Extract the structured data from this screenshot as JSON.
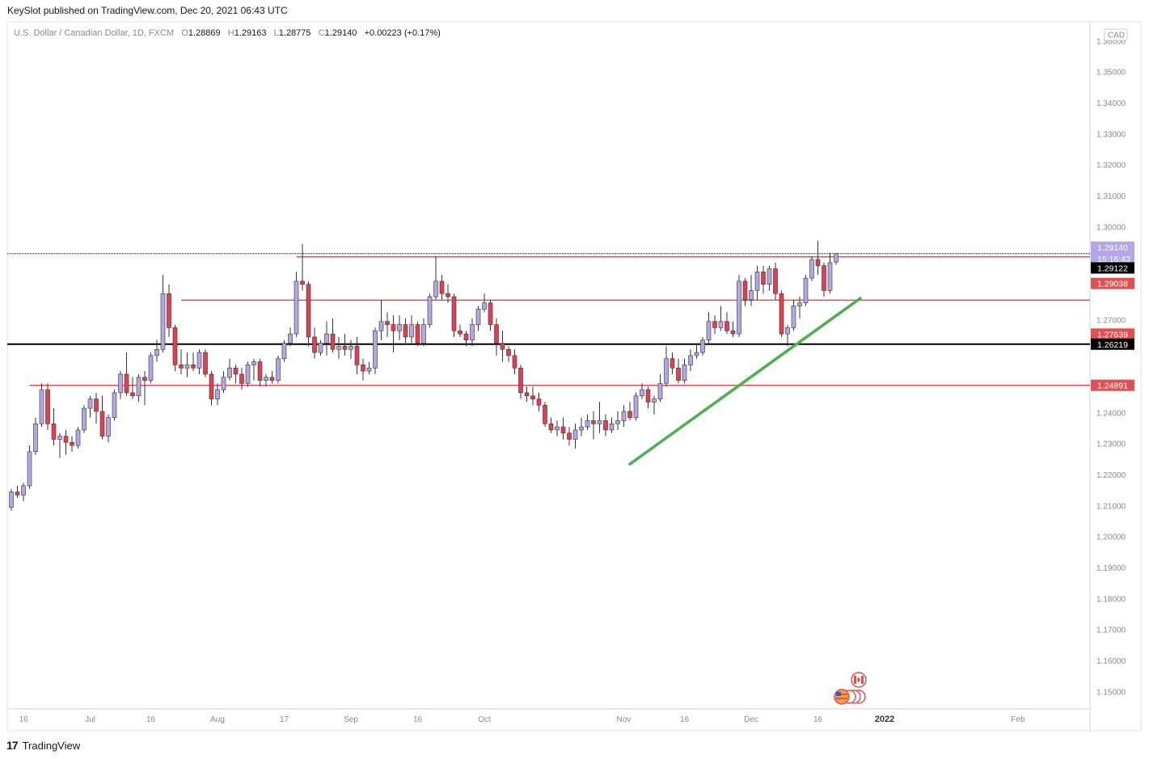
{
  "header": {
    "publisher_text": "KeySlot published on TradingView.com, Dec 20, 2021 06:43 UTC"
  },
  "legend": {
    "symbol": "U.S. Dollar / Canadian Dollar, 1D, FXCM",
    "o_label": "O",
    "o_value": "1.28869",
    "h_label": "H",
    "h_value": "1.29163",
    "l_label": "L",
    "l_value": "1.28775",
    "c_label": "C",
    "c_value": "1.29140",
    "change": "+0.00223 (+0.17%)"
  },
  "footer": {
    "logo": "17",
    "brand": "TradingView"
  },
  "currency_badge": "CAD",
  "colors": {
    "up_candle": "#b4a7e5",
    "down_candle": "#e04050",
    "wick": "#333333",
    "support_red": "#e05050",
    "trend_green": "#4caf50",
    "black_line": "#000000",
    "price_tag": "#b4a7e5"
  },
  "chart_data": {
    "type": "candlestick",
    "title": "U.S. Dollar / Canadian Dollar, 1D, FXCM",
    "ylim": [
      1.1445,
      1.3662
    ],
    "y_ticks": [
      "1.36000",
      "1.35000",
      "1.34000",
      "1.33000",
      "1.32000",
      "1.31000",
      "1.30000",
      "1.27000",
      "1.24000",
      "1.23000",
      "1.22000",
      "1.21000",
      "1.20000",
      "1.19000",
      "1.18000",
      "1.17000",
      "1.16000",
      "1.15000"
    ],
    "x_ticks": [
      {
        "label": "16",
        "bar": 2
      },
      {
        "label": "Jul",
        "bar": 13
      },
      {
        "label": "16",
        "bar": 23
      },
      {
        "label": "Aug",
        "bar": 34
      },
      {
        "label": "17",
        "bar": 45
      },
      {
        "label": "Sep",
        "bar": 56
      },
      {
        "label": "16",
        "bar": 67
      },
      {
        "label": "Oct",
        "bar": 78
      },
      {
        "label": "Nov",
        "bar": 101
      },
      {
        "label": "16",
        "bar": 111
      },
      {
        "label": "Dec",
        "bar": 122
      },
      {
        "label": "16",
        "bar": 133
      },
      {
        "label": "2022",
        "bar": 144
      },
      {
        "label": "Feb",
        "bar": 166
      }
    ],
    "horizontal_levels": [
      {
        "value": 1.2914,
        "style": "black-dotted",
        "label": "1.29140",
        "sublabel": "15:16:43",
        "label_color": "#b4a7e5"
      },
      {
        "value": 1.29122,
        "style": "none",
        "label": "1.29122",
        "label_color": "#000000"
      },
      {
        "value": 1.29038,
        "style": "red",
        "label": "1.29038",
        "label_color": "#e05050",
        "from_bar": 47
      },
      {
        "value": 1.27639,
        "style": "red",
        "label": "1.27639",
        "label_color": "#e05050",
        "from_bar": 28
      },
      {
        "value": 1.26219,
        "style": "black",
        "label": "1.26219",
        "label_color": "#000000"
      },
      {
        "value": 1.24891,
        "style": "red",
        "label": "1.24891",
        "label_color": "#e05050",
        "from_bar": 3
      }
    ],
    "trendline": {
      "from": {
        "bar": 102,
        "value": 1.2235
      },
      "to": {
        "bar": 140,
        "value": 1.277
      }
    },
    "candles": [
      {
        "o": 1.2095,
        "h": 1.2155,
        "l": 1.2085,
        "c": 1.2145
      },
      {
        "o": 1.2145,
        "h": 1.2165,
        "l": 1.2125,
        "c": 1.2135
      },
      {
        "o": 1.2135,
        "h": 1.2175,
        "l": 1.2115,
        "c": 1.2165
      },
      {
        "o": 1.2165,
        "h": 1.2295,
        "l": 1.2155,
        "c": 1.2275
      },
      {
        "o": 1.2275,
        "h": 1.2385,
        "l": 1.2265,
        "c": 1.2365
      },
      {
        "o": 1.2365,
        "h": 1.2495,
        "l": 1.2355,
        "c": 1.2475
      },
      {
        "o": 1.2475,
        "h": 1.2495,
        "l": 1.2345,
        "c": 1.2365
      },
      {
        "o": 1.2365,
        "h": 1.2415,
        "l": 1.2295,
        "c": 1.2315
      },
      {
        "o": 1.2315,
        "h": 1.2335,
        "l": 1.2255,
        "c": 1.2325
      },
      {
        "o": 1.2325,
        "h": 1.2345,
        "l": 1.2265,
        "c": 1.2305
      },
      {
        "o": 1.2305,
        "h": 1.2325,
        "l": 1.2275,
        "c": 1.2295
      },
      {
        "o": 1.2295,
        "h": 1.2355,
        "l": 1.2285,
        "c": 1.2345
      },
      {
        "o": 1.2345,
        "h": 1.2425,
        "l": 1.2335,
        "c": 1.2415
      },
      {
        "o": 1.2415,
        "h": 1.2455,
        "l": 1.2385,
        "c": 1.2445
      },
      {
        "o": 1.2445,
        "h": 1.2465,
        "l": 1.2365,
        "c": 1.2405
      },
      {
        "o": 1.2405,
        "h": 1.2455,
        "l": 1.2315,
        "c": 1.2325
      },
      {
        "o": 1.2325,
        "h": 1.2395,
        "l": 1.2305,
        "c": 1.2385
      },
      {
        "o": 1.2385,
        "h": 1.2475,
        "l": 1.2375,
        "c": 1.2465
      },
      {
        "o": 1.2465,
        "h": 1.2535,
        "l": 1.2445,
        "c": 1.2525
      },
      {
        "o": 1.2525,
        "h": 1.2595,
        "l": 1.2455,
        "c": 1.2465
      },
      {
        "o": 1.2465,
        "h": 1.2515,
        "l": 1.2445,
        "c": 1.2455
      },
      {
        "o": 1.2455,
        "h": 1.2525,
        "l": 1.2435,
        "c": 1.2515
      },
      {
        "o": 1.2515,
        "h": 1.2535,
        "l": 1.2425,
        "c": 1.2505
      },
      {
        "o": 1.2505,
        "h": 1.2595,
        "l": 1.2495,
        "c": 1.2585
      },
      {
        "o": 1.2585,
        "h": 1.2635,
        "l": 1.2565,
        "c": 1.2605
      },
      {
        "o": 1.2605,
        "h": 1.2845,
        "l": 1.2595,
        "c": 1.2785
      },
      {
        "o": 1.2785,
        "h": 1.2815,
        "l": 1.2645,
        "c": 1.2675
      },
      {
        "o": 1.2675,
        "h": 1.2685,
        "l": 1.2535,
        "c": 1.2555
      },
      {
        "o": 1.2555,
        "h": 1.2605,
        "l": 1.2525,
        "c": 1.2545
      },
      {
        "o": 1.2545,
        "h": 1.2595,
        "l": 1.2515,
        "c": 1.2555
      },
      {
        "o": 1.2555,
        "h": 1.2595,
        "l": 1.2535,
        "c": 1.2545
      },
      {
        "o": 1.2545,
        "h": 1.2605,
        "l": 1.2525,
        "c": 1.2595
      },
      {
        "o": 1.2595,
        "h": 1.2605,
        "l": 1.2515,
        "c": 1.2525
      },
      {
        "o": 1.2525,
        "h": 1.2535,
        "l": 1.2425,
        "c": 1.2445
      },
      {
        "o": 1.2445,
        "h": 1.2495,
        "l": 1.2425,
        "c": 1.2475
      },
      {
        "o": 1.2475,
        "h": 1.2535,
        "l": 1.2465,
        "c": 1.2515
      },
      {
        "o": 1.2515,
        "h": 1.2575,
        "l": 1.2505,
        "c": 1.2545
      },
      {
        "o": 1.2545,
        "h": 1.2555,
        "l": 1.2495,
        "c": 1.2525
      },
      {
        "o": 1.2525,
        "h": 1.2545,
        "l": 1.2475,
        "c": 1.2495
      },
      {
        "o": 1.2495,
        "h": 1.2565,
        "l": 1.2485,
        "c": 1.2555
      },
      {
        "o": 1.2555,
        "h": 1.2575,
        "l": 1.2505,
        "c": 1.2565
      },
      {
        "o": 1.2565,
        "h": 1.2575,
        "l": 1.2485,
        "c": 1.2505
      },
      {
        "o": 1.2505,
        "h": 1.2525,
        "l": 1.2485,
        "c": 1.2515
      },
      {
        "o": 1.2515,
        "h": 1.2535,
        "l": 1.2495,
        "c": 1.2505
      },
      {
        "o": 1.2505,
        "h": 1.2585,
        "l": 1.2495,
        "c": 1.2575
      },
      {
        "o": 1.2575,
        "h": 1.2635,
        "l": 1.2565,
        "c": 1.2625
      },
      {
        "o": 1.2625,
        "h": 1.2675,
        "l": 1.2615,
        "c": 1.2655
      },
      {
        "o": 1.2655,
        "h": 1.2855,
        "l": 1.2645,
        "c": 1.2825
      },
      {
        "o": 1.2825,
        "h": 1.2945,
        "l": 1.2795,
        "c": 1.2815
      },
      {
        "o": 1.2815,
        "h": 1.2825,
        "l": 1.2615,
        "c": 1.2645
      },
      {
        "o": 1.2645,
        "h": 1.2675,
        "l": 1.2575,
        "c": 1.2595
      },
      {
        "o": 1.2595,
        "h": 1.2635,
        "l": 1.2585,
        "c": 1.2625
      },
      {
        "o": 1.2625,
        "h": 1.2695,
        "l": 1.2585,
        "c": 1.2655
      },
      {
        "o": 1.2655,
        "h": 1.2705,
        "l": 1.2595,
        "c": 1.2605
      },
      {
        "o": 1.2605,
        "h": 1.2645,
        "l": 1.2575,
        "c": 1.2615
      },
      {
        "o": 1.2615,
        "h": 1.2655,
        "l": 1.2585,
        "c": 1.2605
      },
      {
        "o": 1.2605,
        "h": 1.2635,
        "l": 1.2575,
        "c": 1.2615
      },
      {
        "o": 1.2615,
        "h": 1.2645,
        "l": 1.2525,
        "c": 1.2555
      },
      {
        "o": 1.2555,
        "h": 1.2575,
        "l": 1.2505,
        "c": 1.2535
      },
      {
        "o": 1.2535,
        "h": 1.2565,
        "l": 1.2525,
        "c": 1.2545
      },
      {
        "o": 1.2545,
        "h": 1.2675,
        "l": 1.2525,
        "c": 1.2665
      },
      {
        "o": 1.2665,
        "h": 1.2765,
        "l": 1.2635,
        "c": 1.2695
      },
      {
        "o": 1.2695,
        "h": 1.2725,
        "l": 1.2645,
        "c": 1.2685
      },
      {
        "o": 1.2685,
        "h": 1.2715,
        "l": 1.2595,
        "c": 1.2665
      },
      {
        "o": 1.2665,
        "h": 1.2715,
        "l": 1.2635,
        "c": 1.2685
      },
      {
        "o": 1.2685,
        "h": 1.2705,
        "l": 1.2625,
        "c": 1.2645
      },
      {
        "o": 1.2645,
        "h": 1.2715,
        "l": 1.2625,
        "c": 1.2685
      },
      {
        "o": 1.2685,
        "h": 1.2695,
        "l": 1.2615,
        "c": 1.2625
      },
      {
        "o": 1.2625,
        "h": 1.2705,
        "l": 1.2615,
        "c": 1.2685
      },
      {
        "o": 1.2685,
        "h": 1.2785,
        "l": 1.2675,
        "c": 1.2775
      },
      {
        "o": 1.2775,
        "h": 1.2905,
        "l": 1.2765,
        "c": 1.2825
      },
      {
        "o": 1.2825,
        "h": 1.2845,
        "l": 1.2765,
        "c": 1.2785
      },
      {
        "o": 1.2785,
        "h": 1.2815,
        "l": 1.2755,
        "c": 1.2775
      },
      {
        "o": 1.2775,
        "h": 1.2785,
        "l": 1.2645,
        "c": 1.2665
      },
      {
        "o": 1.2665,
        "h": 1.2685,
        "l": 1.2645,
        "c": 1.2655
      },
      {
        "o": 1.2655,
        "h": 1.2665,
        "l": 1.2615,
        "c": 1.2635
      },
      {
        "o": 1.2635,
        "h": 1.2705,
        "l": 1.2615,
        "c": 1.2685
      },
      {
        "o": 1.2685,
        "h": 1.2745,
        "l": 1.2665,
        "c": 1.2735
      },
      {
        "o": 1.2735,
        "h": 1.2785,
        "l": 1.2725,
        "c": 1.2755
      },
      {
        "o": 1.2755,
        "h": 1.2765,
        "l": 1.2665,
        "c": 1.2685
      },
      {
        "o": 1.2685,
        "h": 1.2705,
        "l": 1.2585,
        "c": 1.2625
      },
      {
        "o": 1.2625,
        "h": 1.2665,
        "l": 1.2565,
        "c": 1.2605
      },
      {
        "o": 1.2605,
        "h": 1.2615,
        "l": 1.2565,
        "c": 1.2585
      },
      {
        "o": 1.2585,
        "h": 1.2605,
        "l": 1.2525,
        "c": 1.2545
      },
      {
        "o": 1.2545,
        "h": 1.2555,
        "l": 1.2445,
        "c": 1.2465
      },
      {
        "o": 1.2465,
        "h": 1.2485,
        "l": 1.2435,
        "c": 1.2455
      },
      {
        "o": 1.2455,
        "h": 1.2485,
        "l": 1.2425,
        "c": 1.2445
      },
      {
        "o": 1.2445,
        "h": 1.2465,
        "l": 1.2405,
        "c": 1.2425
      },
      {
        "o": 1.2425,
        "h": 1.2435,
        "l": 1.2355,
        "c": 1.2365
      },
      {
        "o": 1.2365,
        "h": 1.2385,
        "l": 1.2335,
        "c": 1.2345
      },
      {
        "o": 1.2345,
        "h": 1.2375,
        "l": 1.2325,
        "c": 1.2355
      },
      {
        "o": 1.2355,
        "h": 1.2385,
        "l": 1.2315,
        "c": 1.2335
      },
      {
        "o": 1.2335,
        "h": 1.2355,
        "l": 1.2295,
        "c": 1.2315
      },
      {
        "o": 1.2315,
        "h": 1.2365,
        "l": 1.2285,
        "c": 1.2345
      },
      {
        "o": 1.2345,
        "h": 1.2385,
        "l": 1.2325,
        "c": 1.2355
      },
      {
        "o": 1.2355,
        "h": 1.2395,
        "l": 1.2345,
        "c": 1.2375
      },
      {
        "o": 1.2375,
        "h": 1.2405,
        "l": 1.2315,
        "c": 1.2365
      },
      {
        "o": 1.2365,
        "h": 1.2435,
        "l": 1.2335,
        "c": 1.2375
      },
      {
        "o": 1.2375,
        "h": 1.2395,
        "l": 1.2325,
        "c": 1.2345
      },
      {
        "o": 1.2345,
        "h": 1.2385,
        "l": 1.2335,
        "c": 1.2365
      },
      {
        "o": 1.2365,
        "h": 1.2405,
        "l": 1.2345,
        "c": 1.2375
      },
      {
        "o": 1.2375,
        "h": 1.2425,
        "l": 1.2355,
        "c": 1.2405
      },
      {
        "o": 1.2405,
        "h": 1.2435,
        "l": 1.2375,
        "c": 1.2385
      },
      {
        "o": 1.2385,
        "h": 1.2465,
        "l": 1.2375,
        "c": 1.2455
      },
      {
        "o": 1.2455,
        "h": 1.2495,
        "l": 1.2445,
        "c": 1.2475
      },
      {
        "o": 1.2475,
        "h": 1.2485,
        "l": 1.2415,
        "c": 1.2435
      },
      {
        "o": 1.2435,
        "h": 1.2455,
        "l": 1.2395,
        "c": 1.2445
      },
      {
        "o": 1.2445,
        "h": 1.2525,
        "l": 1.2435,
        "c": 1.2495
      },
      {
        "o": 1.2495,
        "h": 1.2615,
        "l": 1.2485,
        "c": 1.2575
      },
      {
        "o": 1.2575,
        "h": 1.2595,
        "l": 1.2525,
        "c": 1.2545
      },
      {
        "o": 1.2545,
        "h": 1.2575,
        "l": 1.2495,
        "c": 1.2505
      },
      {
        "o": 1.2505,
        "h": 1.2575,
        "l": 1.2495,
        "c": 1.2555
      },
      {
        "o": 1.2555,
        "h": 1.2605,
        "l": 1.2535,
        "c": 1.2585
      },
      {
        "o": 1.2585,
        "h": 1.2625,
        "l": 1.2575,
        "c": 1.2595
      },
      {
        "o": 1.2595,
        "h": 1.2645,
        "l": 1.2585,
        "c": 1.2635
      },
      {
        "o": 1.2635,
        "h": 1.2725,
        "l": 1.2625,
        "c": 1.2695
      },
      {
        "o": 1.2695,
        "h": 1.2715,
        "l": 1.2655,
        "c": 1.2675
      },
      {
        "o": 1.2675,
        "h": 1.2745,
        "l": 1.2665,
        "c": 1.2695
      },
      {
        "o": 1.2695,
        "h": 1.2725,
        "l": 1.2655,
        "c": 1.2665
      },
      {
        "o": 1.2665,
        "h": 1.2695,
        "l": 1.2645,
        "c": 1.2655
      },
      {
        "o": 1.2655,
        "h": 1.2845,
        "l": 1.2645,
        "c": 1.2825
      },
      {
        "o": 1.2825,
        "h": 1.2835,
        "l": 1.2745,
        "c": 1.2765
      },
      {
        "o": 1.2765,
        "h": 1.2845,
        "l": 1.2745,
        "c": 1.2795
      },
      {
        "o": 1.2795,
        "h": 1.2875,
        "l": 1.2765,
        "c": 1.2855
      },
      {
        "o": 1.2855,
        "h": 1.2875,
        "l": 1.2785,
        "c": 1.2815
      },
      {
        "o": 1.2815,
        "h": 1.2875,
        "l": 1.2795,
        "c": 1.2865
      },
      {
        "o": 1.2865,
        "h": 1.2885,
        "l": 1.2765,
        "c": 1.2785
      },
      {
        "o": 1.2785,
        "h": 1.2795,
        "l": 1.2645,
        "c": 1.2655
      },
      {
        "o": 1.2655,
        "h": 1.2685,
        "l": 1.2615,
        "c": 1.2675
      },
      {
        "o": 1.2675,
        "h": 1.2765,
        "l": 1.2665,
        "c": 1.2745
      },
      {
        "o": 1.2745,
        "h": 1.2775,
        "l": 1.2705,
        "c": 1.2755
      },
      {
        "o": 1.2755,
        "h": 1.2845,
        "l": 1.2745,
        "c": 1.2835
      },
      {
        "o": 1.2835,
        "h": 1.2905,
        "l": 1.2825,
        "c": 1.2895
      },
      {
        "o": 1.2895,
        "h": 1.2955,
        "l": 1.2845,
        "c": 1.2875
      },
      {
        "o": 1.2875,
        "h": 1.2885,
        "l": 1.2775,
        "c": 1.2795
      },
      {
        "o": 1.2795,
        "h": 1.2915,
        "l": 1.2785,
        "c": 1.2885
      },
      {
        "o": 1.2887,
        "h": 1.2916,
        "l": 1.2878,
        "c": 1.2914
      }
    ]
  }
}
